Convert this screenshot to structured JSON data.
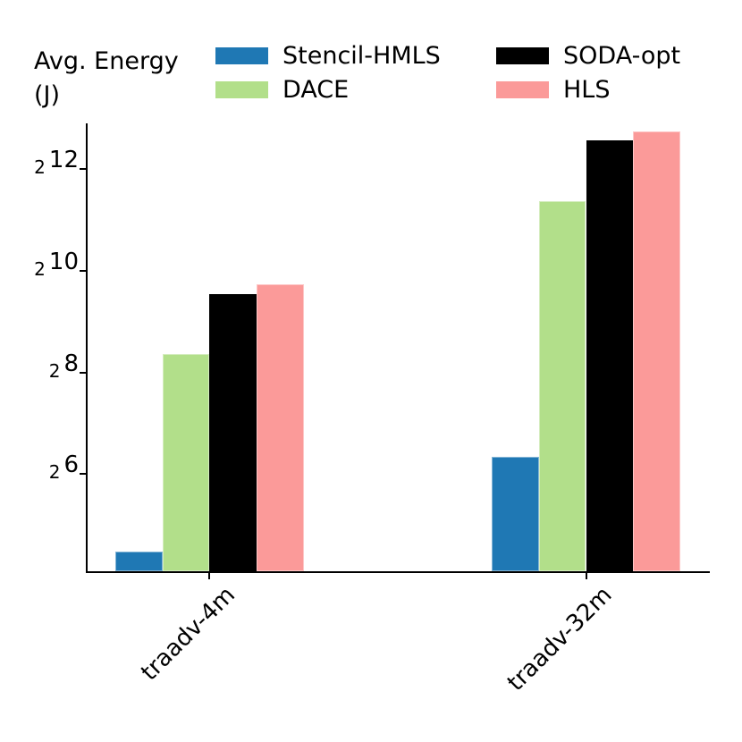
{
  "header": {
    "ylabel_line1": "Avg. Energy",
    "ylabel_line2": "(J)"
  },
  "legend": {
    "items": [
      {
        "label": "Stencil-HMLS",
        "color": "#1f78b4"
      },
      {
        "label": "DACE",
        "color": "#b2df8a"
      },
      {
        "label": "SODA-opt",
        "color": "#000000"
      },
      {
        "label": "HLS",
        "color": "#fb9a99"
      }
    ]
  },
  "chart_data": {
    "type": "bar",
    "title": "",
    "ylabel": "Avg. Energy (J)",
    "xlabel": "",
    "y_scale": "log2",
    "grid": false,
    "legend_position": "top",
    "categories": [
      "traadv-4m",
      "traadv-32m"
    ],
    "series": [
      {
        "name": "Stencil-HMLS",
        "color": "#1f78b4",
        "log2_values": [
          4.46,
          6.33
        ],
        "values_J": [
          22,
          80
        ]
      },
      {
        "name": "DACE",
        "color": "#b2df8a",
        "log2_values": [
          8.34,
          11.35
        ],
        "values_J": [
          324,
          2610
        ]
      },
      {
        "name": "SODA-opt",
        "color": "#000000",
        "log2_values": [
          9.52,
          12.55
        ],
        "values_J": [
          734,
          6000
        ]
      },
      {
        "name": "HLS",
        "color": "#fb9a99",
        "log2_values": [
          9.71,
          12.73
        ],
        "values_J": [
          838,
          6790
        ]
      }
    ],
    "yticks": [
      {
        "base": "2",
        "exp": "12",
        "log2": 12
      },
      {
        "base": "2",
        "exp": "10",
        "log2": 10
      },
      {
        "base": "2",
        "exp": "8",
        "log2": 8
      },
      {
        "base": "2",
        "exp": "6",
        "log2": 6
      }
    ],
    "ylim_log2": [
      4.07,
      12.9
    ]
  }
}
